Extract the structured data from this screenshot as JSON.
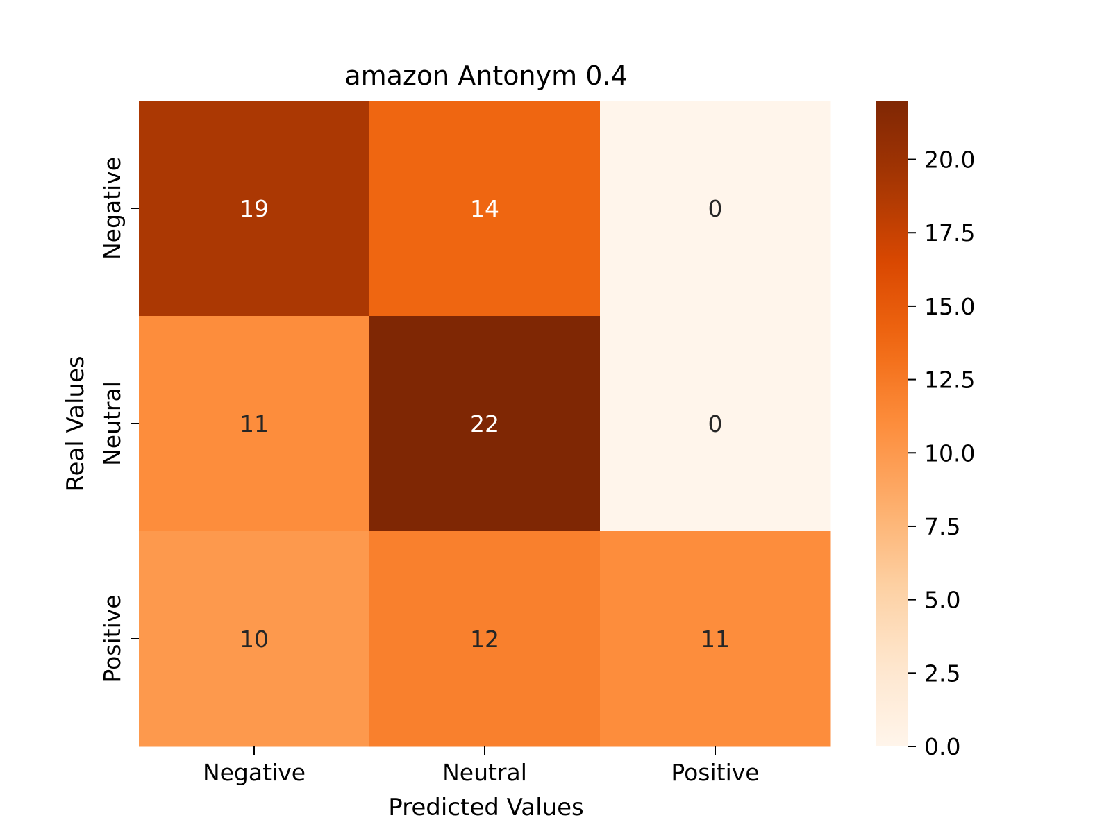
{
  "chart_data": {
    "type": "heatmap",
    "title": "amazon Antonym 0.4",
    "xlabel": "Predicted Values",
    "ylabel": "Real Values",
    "x_categories": [
      "Negative",
      "Neutral",
      "Positive"
    ],
    "y_categories": [
      "Negative",
      "Neutral",
      "Positive"
    ],
    "values": [
      [
        19,
        14,
        0
      ],
      [
        11,
        22,
        0
      ],
      [
        10,
        12,
        11
      ]
    ],
    "colorbar": {
      "range": [
        0,
        22
      ],
      "ticks": [
        "0.0",
        "2.5",
        "5.0",
        "7.5",
        "10.0",
        "12.5",
        "15.0",
        "17.5",
        "20.0"
      ],
      "tick_values": [
        0,
        2.5,
        5,
        7.5,
        10,
        12.5,
        15,
        17.5,
        20
      ],
      "colormap": "Oranges"
    },
    "colors": {
      "low": "#fff5eb",
      "high": "#7f2704",
      "text_dark": "#262626",
      "text_light": "#ffffff"
    }
  }
}
